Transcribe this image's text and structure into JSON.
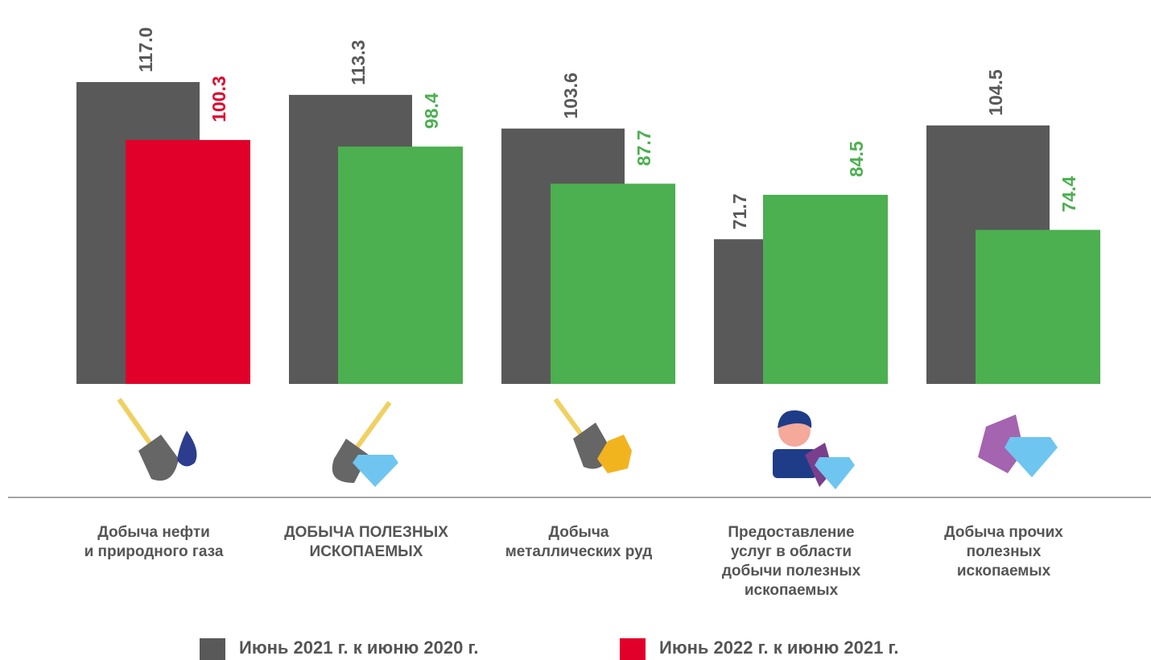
{
  "chart_data": {
    "type": "bar",
    "categories": [
      "Добыча нефти\nи природного газа",
      "ДОБЫЧА ПОЛЕЗНЫХ\nИСКОПАЕМЫХ",
      "Добыча\nметаллических руд",
      "Предоставление\nуслуг в области\nдобычи полезных\nископаемых",
      "Добыча прочих\nполезных\nископаемых"
    ],
    "series": [
      {
        "name": "Июнь 2021 г. к июню 2020 г.",
        "color": "#595959",
        "values": [
          117.0,
          113.3,
          103.6,
          71.7,
          104.5
        ],
        "value_labels": [
          "117.0",
          "113.3",
          "103.6",
          "71.7",
          "104.5"
        ]
      },
      {
        "name": "Июнь 2022 г. к июню 2021 г.",
        "color": "#e0002a",
        "colors": [
          "#e0002a",
          "#4caf50",
          "#4caf50",
          "#4caf50",
          "#4caf50"
        ],
        "values": [
          100.3,
          98.4,
          87.7,
          84.5,
          74.4
        ],
        "value_labels": [
          "100.3",
          "98.4",
          "87.7",
          "84.5",
          "74.4"
        ]
      }
    ],
    "ylim": [
      30,
      120
    ]
  }
}
